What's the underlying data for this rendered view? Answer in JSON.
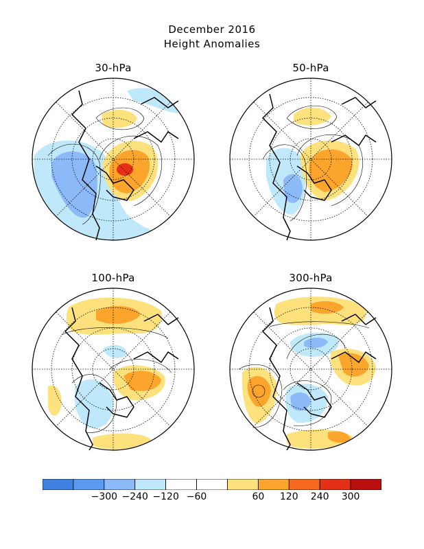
{
  "title": "December 2016",
  "subtitle": "Height Anomalies",
  "panels": [
    {
      "label": "30-hPa"
    },
    {
      "label": "50-hPa"
    },
    {
      "label": "100-hPa"
    },
    {
      "label": "300-hPa"
    }
  ],
  "colorbar": {
    "colors": [
      "#3f7fe0",
      "#5a9af0",
      "#8cbaf8",
      "#bfe9fb",
      "#ffffff",
      "#ffffff",
      "#fde17c",
      "#fba52c",
      "#f56a1e",
      "#e53015",
      "#bb0f0f"
    ],
    "tick_labels": [
      "−300",
      "−240",
      "−120",
      "−60",
      "60",
      "120",
      "240",
      "300"
    ]
  },
  "legend_colors": {
    "strong_negative": "#5a9af0",
    "moderate_negative": "#8cbaf8",
    "weak_negative": "#bfe9fb",
    "weak_positive": "#fde17c",
    "moderate_positive": "#fba52c",
    "strong_positive": "#e53015"
  }
}
